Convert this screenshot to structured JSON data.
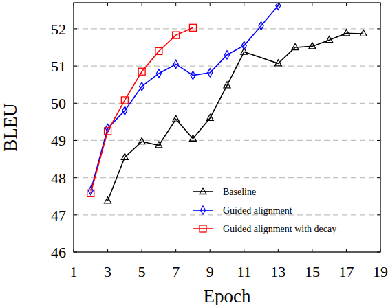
{
  "chart_data": {
    "type": "line",
    "x_label": "Epoch",
    "y_label": "BLEU",
    "xlim": [
      1,
      19
    ],
    "xticks": [
      1,
      3,
      5,
      7,
      9,
      11,
      13,
      15,
      17,
      19
    ],
    "ylim": [
      46,
      52.7
    ],
    "yticks": [
      46,
      47,
      48,
      49,
      50,
      51,
      52
    ],
    "grid": true,
    "legend": "lower right",
    "series": [
      {
        "name": "Baseline",
        "color": "#000000",
        "marker": "triangle",
        "line_style": "solid",
        "x": [
          3,
          4,
          5,
          6,
          7,
          8,
          9,
          10,
          11,
          13,
          14,
          15,
          16,
          17,
          18
        ],
        "values": [
          47.38,
          48.55,
          48.97,
          48.87,
          49.57,
          49.05,
          49.6,
          50.48,
          51.38,
          51.07,
          51.5,
          51.53,
          51.7,
          51.88,
          51.87
        ]
      },
      {
        "name": "Guided alignment",
        "color": "#0000ff",
        "marker": "diamond",
        "line_style": "solid",
        "x": [
          2,
          3,
          4,
          5,
          6,
          7,
          8,
          9,
          10,
          11,
          12,
          13
        ],
        "values": [
          47.65,
          49.33,
          49.8,
          50.45,
          50.8,
          51.05,
          50.75,
          50.82,
          51.3,
          51.55,
          52.08,
          52.62
        ]
      },
      {
        "name": "Guided alignment with decay",
        "color": "#ff0000",
        "marker": "square",
        "line_style": "solid",
        "x": [
          2,
          3,
          4,
          5,
          6,
          7,
          8
        ],
        "values": [
          47.58,
          49.25,
          50.08,
          50.85,
          51.4,
          51.83,
          52.03
        ]
      }
    ]
  }
}
